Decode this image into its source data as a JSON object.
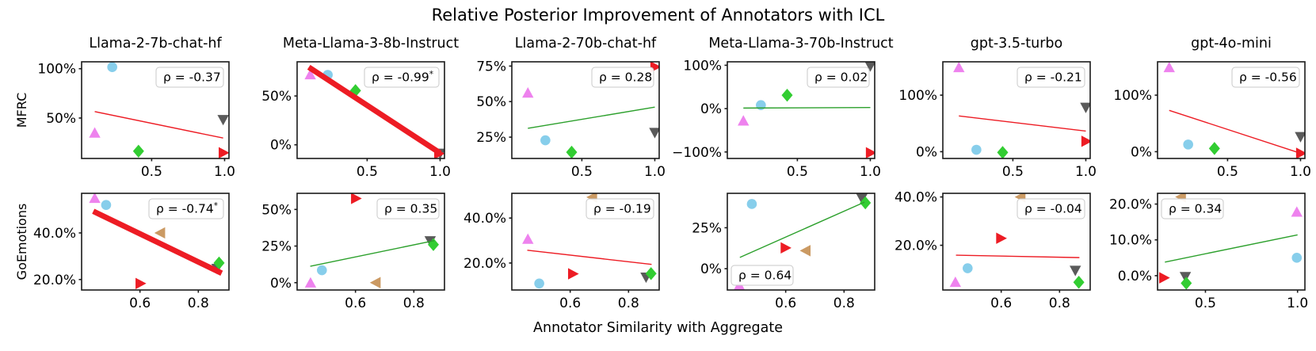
{
  "title": "Relative Posterior Improvement of Annotators with ICL",
  "xlabel": "Annotator Similarity with Aggregate",
  "rows": [
    "MFRC",
    "GoEmotions"
  ],
  "columns": [
    "Llama-2-7b-chat-hf",
    "Meta-Llama-3-8b-Instruct",
    "Llama-2-70b-chat-hf",
    "Meta-Llama-3-70b-Instruct",
    "gpt-3.5-turbo",
    "gpt-4o-mini"
  ],
  "colors": {
    "skyblue": "#87CEEB",
    "violet": "#EE82EE",
    "limegreen": "#32CD32",
    "gray": "#5A5A5A",
    "red": "#ED1C24",
    "peru": "#CB9A63",
    "trend_red": "#ED1C24",
    "trend_green": "#2CA02C",
    "axis": "#1A1A1A",
    "rho_box_border": "#C9C9C9",
    "rho_box_fill": "#FFFFFF"
  },
  "marker_shapes": [
    "circle",
    "triangle-up",
    "triangle-down",
    "triangle-left",
    "triangle-right",
    "diamond"
  ],
  "chart_data": [
    {
      "type": "scatter",
      "row": 0,
      "col": 0,
      "dataset": "MFRC",
      "model": "Llama-2-7b-chat-hf",
      "xlim": [
        0.02,
        1.03
      ],
      "ylim": [
        9,
        107
      ],
      "xticks": [
        {
          "v": 0.5,
          "label": "0.5"
        },
        {
          "v": 1.0,
          "label": "1.0"
        }
      ],
      "yticks": [
        {
          "v": 50,
          "label": "50%"
        },
        {
          "v": 100,
          "label": "100%"
        }
      ],
      "points": [
        {
          "marker": "triangle-up",
          "color": "violet",
          "x": 0.11,
          "y": 34.6
        },
        {
          "marker": "circle",
          "color": "skyblue",
          "x": 0.23,
          "y": 101.6
        },
        {
          "marker": "diamond",
          "color": "limegreen",
          "x": 0.41,
          "y": 16.4
        },
        {
          "marker": "triangle-down",
          "color": "gray",
          "x": 0.99,
          "y": 48.6
        },
        {
          "marker": "triangle-right",
          "color": "red",
          "x": 0.99,
          "y": 14.8
        }
      ],
      "trend": {
        "color": "red",
        "x1": 0.11,
        "y1": 56.5,
        "x2": 0.99,
        "y2": 29.7,
        "thick": false
      },
      "rho": {
        "value": "-0.37",
        "significant": false,
        "position": "top-right"
      }
    },
    {
      "type": "scatter",
      "row": 0,
      "col": 1,
      "dataset": "MFRC",
      "model": "Meta-Llama-3-8b-Instruct",
      "xlim": [
        0.02,
        1.03
      ],
      "ylim": [
        -14,
        85
      ],
      "xticks": [
        {
          "v": 0.5,
          "label": "0.5"
        },
        {
          "v": 1.0,
          "label": "1.0"
        }
      ],
      "yticks": [
        {
          "v": 0,
          "label": "0%"
        },
        {
          "v": 50,
          "label": "50%"
        }
      ],
      "points": [
        {
          "marker": "triangle-up",
          "color": "violet",
          "x": 0.11,
          "y": 71.6
        },
        {
          "marker": "circle",
          "color": "skyblue",
          "x": 0.23,
          "y": 71.6
        },
        {
          "marker": "diamond",
          "color": "limegreen",
          "x": 0.42,
          "y": 55.5
        },
        {
          "marker": "triangle-down",
          "color": "gray",
          "x": 1.0,
          "y": -8.5
        },
        {
          "marker": "triangle-right",
          "color": "red",
          "x": 0.99,
          "y": -9.0
        }
      ],
      "trend": {
        "color": "red",
        "x1": 0.1,
        "y1": 79.5,
        "x2": 1.0,
        "y2": -8.5,
        "thick": true
      },
      "rho": {
        "value": "-0.99",
        "significant": true,
        "position": "top-right"
      }
    },
    {
      "type": "scatter",
      "row": 0,
      "col": 2,
      "dataset": "MFRC",
      "model": "Llama-2-70b-chat-hf",
      "xlim": [
        0.02,
        1.03
      ],
      "ylim": [
        10,
        78
      ],
      "xticks": [
        {
          "v": 0.5,
          "label": "0.5"
        },
        {
          "v": 1.0,
          "label": "1.0"
        }
      ],
      "yticks": [
        {
          "v": 25,
          "label": "25%"
        },
        {
          "v": 50,
          "label": "50%"
        },
        {
          "v": 75,
          "label": "75%"
        }
      ],
      "points": [
        {
          "marker": "triangle-up",
          "color": "violet",
          "x": 0.13,
          "y": 55.9
        },
        {
          "marker": "circle",
          "color": "skyblue",
          "x": 0.25,
          "y": 22.8
        },
        {
          "marker": "diamond",
          "color": "limegreen",
          "x": 0.43,
          "y": 14.4
        },
        {
          "marker": "triangle-right",
          "color": "red",
          "x": 1.0,
          "y": 74.4
        },
        {
          "marker": "triangle-down",
          "color": "gray",
          "x": 1.0,
          "y": 28.4
        }
      ],
      "trend": {
        "color": "green",
        "x1": 0.13,
        "y1": 31.2,
        "x2": 1.0,
        "y2": 46.1,
        "thick": false
      },
      "rho": {
        "value": "0.28",
        "significant": false,
        "position": "top-right"
      }
    },
    {
      "type": "scatter",
      "row": 0,
      "col": 3,
      "dataset": "MFRC",
      "model": "Meta-Llama-3-70b-Instruct",
      "xlim": [
        0.02,
        1.03
      ],
      "ylim": [
        -115,
        108
      ],
      "xticks": [
        {
          "v": 0.5,
          "label": "0.5"
        },
        {
          "v": 1.0,
          "label": "1.0"
        }
      ],
      "yticks": [
        {
          "v": -100,
          "label": "−100%"
        },
        {
          "v": 0,
          "label": "0%"
        },
        {
          "v": 100,
          "label": "100%"
        }
      ],
      "points": [
        {
          "marker": "triangle-up",
          "color": "violet",
          "x": 0.13,
          "y": -28.9
        },
        {
          "marker": "circle",
          "color": "skyblue",
          "x": 0.25,
          "y": 8.1
        },
        {
          "marker": "diamond",
          "color": "limegreen",
          "x": 0.43,
          "y": 30.9
        },
        {
          "marker": "triangle-down",
          "color": "gray",
          "x": 1.0,
          "y": 98.9
        },
        {
          "marker": "triangle-right",
          "color": "red",
          "x": 1.0,
          "y": -101.9
        }
      ],
      "trend": {
        "color": "green",
        "x1": 0.13,
        "y1": 1.3,
        "x2": 1.0,
        "y2": 2.6,
        "thick": false
      },
      "rho": {
        "value": "0.02",
        "significant": false,
        "position": "top-right"
      }
    },
    {
      "type": "scatter",
      "row": 0,
      "col": 4,
      "dataset": "MFRC",
      "model": "gpt-3.5-turbo",
      "xlim": [
        0.02,
        1.03
      ],
      "ylim": [
        -12,
        159
      ],
      "xticks": [
        {
          "v": 0.5,
          "label": "0.5"
        },
        {
          "v": 1.0,
          "label": "1.0"
        }
      ],
      "yticks": [
        {
          "v": 0,
          "label": "0%"
        },
        {
          "v": 100,
          "label": "100%"
        }
      ],
      "points": [
        {
          "marker": "triangle-up",
          "color": "violet",
          "x": 0.13,
          "y": 148.5
        },
        {
          "marker": "circle",
          "color": "skyblue",
          "x": 0.25,
          "y": 3.4
        },
        {
          "marker": "diamond",
          "color": "limegreen",
          "x": 0.43,
          "y": -1.4
        },
        {
          "marker": "triangle-down",
          "color": "gray",
          "x": 1.0,
          "y": 78.8
        },
        {
          "marker": "triangle-right",
          "color": "red",
          "x": 1.0,
          "y": 18.4
        }
      ],
      "trend": {
        "color": "red",
        "x1": 0.13,
        "y1": 63.2,
        "x2": 1.0,
        "y2": 36.4,
        "thick": false
      },
      "rho": {
        "value": "-0.21",
        "significant": false,
        "position": "top-right"
      }
    },
    {
      "type": "scatter",
      "row": 0,
      "col": 5,
      "dataset": "MFRC",
      "model": "gpt-4o-mini",
      "xlim": [
        0.02,
        1.03
      ],
      "ylim": [
        -12,
        159
      ],
      "xticks": [
        {
          "v": 0.5,
          "label": "0.5"
        },
        {
          "v": 1.0,
          "label": "1.0"
        }
      ],
      "yticks": [
        {
          "v": 0,
          "label": "0%"
        },
        {
          "v": 100,
          "label": "100%"
        }
      ],
      "points": [
        {
          "marker": "triangle-up",
          "color": "violet",
          "x": 0.1,
          "y": 148.5
        },
        {
          "marker": "circle",
          "color": "skyblue",
          "x": 0.23,
          "y": 12.7
        },
        {
          "marker": "diamond",
          "color": "limegreen",
          "x": 0.41,
          "y": 5.7
        },
        {
          "marker": "triangle-down",
          "color": "gray",
          "x": 1.0,
          "y": 26.9
        },
        {
          "marker": "triangle-right",
          "color": "red",
          "x": 1.0,
          "y": -2.8
        }
      ],
      "trend": {
        "color": "red",
        "x1": 0.1,
        "y1": 73.1,
        "x2": 1.0,
        "y2": -2.8,
        "thick": false
      },
      "rho": {
        "value": "-0.56",
        "significant": false,
        "position": "top-right"
      }
    },
    {
      "type": "scatter",
      "row": 1,
      "col": 0,
      "dataset": "GoEmotions",
      "model": "Llama-2-7b-chat-hf",
      "xlim": [
        0.4,
        0.905
      ],
      "ylim": [
        15.5,
        57
      ],
      "xticks": [
        {
          "v": 0.6,
          "label": "0.6"
        },
        {
          "v": 0.8,
          "label": "0.8"
        }
      ],
      "yticks": [
        {
          "v": 20,
          "label": "20.0%"
        },
        {
          "v": 40,
          "label": "40.0%"
        }
      ],
      "points": [
        {
          "marker": "triangle-up",
          "color": "violet",
          "x": 0.445,
          "y": 54.8
        },
        {
          "marker": "circle",
          "color": "skyblue",
          "x": 0.484,
          "y": 52.0
        },
        {
          "marker": "triangle-left",
          "color": "peru",
          "x": 0.671,
          "y": 40.0
        },
        {
          "marker": "triangle-right",
          "color": "red",
          "x": 0.6,
          "y": 18.3
        },
        {
          "marker": "triangle-down",
          "color": "gray",
          "x": 0.864,
          "y": 24.8
        },
        {
          "marker": "diamond",
          "color": "limegreen",
          "x": 0.871,
          "y": 27.1
        }
      ],
      "trend": {
        "color": "red",
        "x1": 0.44,
        "y1": 49.3,
        "x2": 0.88,
        "y2": 22.7,
        "thick": true
      },
      "rho": {
        "value": "-0.74",
        "significant": true,
        "position": "top-right"
      }
    },
    {
      "type": "scatter",
      "row": 1,
      "col": 1,
      "dataset": "GoEmotions",
      "model": "Meta-Llama-3-8b-Instruct",
      "xlim": [
        0.4,
        0.905
      ],
      "ylim": [
        -5,
        61
      ],
      "xticks": [
        {
          "v": 0.6,
          "label": "0.6"
        },
        {
          "v": 0.8,
          "label": "0.8"
        }
      ],
      "yticks": [
        {
          "v": 0,
          "label": "0%"
        },
        {
          "v": 25,
          "label": "25%"
        },
        {
          "v": 50,
          "label": "50%"
        }
      ],
      "points": [
        {
          "marker": "triangle-right",
          "color": "red",
          "x": 0.6,
          "y": 57.5
        },
        {
          "marker": "triangle-up",
          "color": "violet",
          "x": 0.446,
          "y": -0.3
        },
        {
          "marker": "circle",
          "color": "skyblue",
          "x": 0.485,
          "y": 8.5
        },
        {
          "marker": "triangle-left",
          "color": "peru",
          "x": 0.671,
          "y": 0.0
        },
        {
          "marker": "triangle-down",
          "color": "gray",
          "x": 0.856,
          "y": 28.7
        },
        {
          "marker": "diamond",
          "color": "limegreen",
          "x": 0.867,
          "y": 26.0
        }
      ],
      "trend": {
        "color": "green",
        "x1": 0.445,
        "y1": 11.2,
        "x2": 0.87,
        "y2": 28.7,
        "thick": false
      },
      "rho": {
        "value": "0.35",
        "significant": false,
        "position": "top-right"
      }
    },
    {
      "type": "scatter",
      "row": 1,
      "col": 2,
      "dataset": "GoEmotions",
      "model": "Llama-2-70b-chat-hf",
      "xlim": [
        0.4,
        0.905
      ],
      "ylim": [
        8,
        51
      ],
      "xticks": [
        {
          "v": 0.6,
          "label": "0.6"
        },
        {
          "v": 0.8,
          "label": "0.8"
        }
      ],
      "yticks": [
        {
          "v": 20,
          "label": "20.0%"
        },
        {
          "v": 40,
          "label": "40.0%"
        }
      ],
      "points": [
        {
          "marker": "triangle-left",
          "color": "peru",
          "x": 0.677,
          "y": 49.3
        },
        {
          "marker": "triangle-up",
          "color": "violet",
          "x": 0.455,
          "y": 30.5
        },
        {
          "marker": "circle",
          "color": "skyblue",
          "x": 0.494,
          "y": 10.9
        },
        {
          "marker": "triangle-right",
          "color": "red",
          "x": 0.608,
          "y": 15.2
        },
        {
          "marker": "triangle-down",
          "color": "gray",
          "x": 0.86,
          "y": 13.8
        },
        {
          "marker": "diamond",
          "color": "limegreen",
          "x": 0.877,
          "y": 15.3
        }
      ],
      "trend": {
        "color": "red",
        "x1": 0.453,
        "y1": 25.7,
        "x2": 0.879,
        "y2": 19.4,
        "thick": false
      },
      "rho": {
        "value": "-0.19",
        "significant": false,
        "position": "top-right"
      }
    },
    {
      "type": "scatter",
      "row": 1,
      "col": 3,
      "dataset": "GoEmotions",
      "model": "Meta-Llama-3-70b-Instruct",
      "xlim": [
        0.4,
        0.905
      ],
      "ylim": [
        -13,
        46
      ],
      "xticks": [
        {
          "v": 0.6,
          "label": "0.6"
        },
        {
          "v": 0.8,
          "label": "0.8"
        }
      ],
      "yticks": [
        {
          "v": 0,
          "label": "0%"
        },
        {
          "v": 25,
          "label": "25%"
        }
      ],
      "points": [
        {
          "marker": "circle",
          "color": "skyblue",
          "x": 0.484,
          "y": 39.5
        },
        {
          "marker": "triangle-down",
          "color": "gray",
          "x": 0.861,
          "y": 43.1
        },
        {
          "marker": "diamond",
          "color": "limegreen",
          "x": 0.873,
          "y": 40.2
        },
        {
          "marker": "triangle-right",
          "color": "red",
          "x": 0.598,
          "y": 12.7
        },
        {
          "marker": "triangle-left",
          "color": "peru",
          "x": 0.67,
          "y": 11.0
        },
        {
          "marker": "triangle-up",
          "color": "violet",
          "x": 0.441,
          "y": -10.4
        }
      ],
      "trend": {
        "color": "green",
        "x1": 0.443,
        "y1": 6.9,
        "x2": 0.87,
        "y2": 40.6,
        "thick": false
      },
      "rho": {
        "value": "0.64",
        "significant": false,
        "position": "bottom-left"
      }
    },
    {
      "type": "scatter",
      "row": 1,
      "col": 4,
      "dataset": "GoEmotions",
      "model": "gpt-3.5-turbo",
      "xlim": [
        0.4,
        0.905
      ],
      "ylim": [
        1.5,
        41.5
      ],
      "xticks": [
        {
          "v": 0.6,
          "label": "0.6"
        },
        {
          "v": 0.8,
          "label": "0.8"
        }
      ],
      "yticks": [
        {
          "v": 20,
          "label": "20.0%"
        },
        {
          "v": 40,
          "label": "40.0%"
        }
      ],
      "points": [
        {
          "marker": "triangle-left",
          "color": "peru",
          "x": 0.668,
          "y": 40.0
        },
        {
          "marker": "triangle-right",
          "color": "red",
          "x": 0.598,
          "y": 22.9
        },
        {
          "marker": "circle",
          "color": "skyblue",
          "x": 0.485,
          "y": 10.5
        },
        {
          "marker": "triangle-up",
          "color": "violet",
          "x": 0.443,
          "y": 4.6
        },
        {
          "marker": "triangle-down",
          "color": "gray",
          "x": 0.854,
          "y": 9.7
        },
        {
          "marker": "diamond",
          "color": "limegreen",
          "x": 0.866,
          "y": 4.7
        }
      ],
      "trend": {
        "color": "red",
        "x1": 0.445,
        "y1": 15.9,
        "x2": 0.868,
        "y2": 14.9,
        "thick": false
      },
      "rho": {
        "value": "-0.04",
        "significant": false,
        "position": "top-right"
      }
    },
    {
      "type": "scatter",
      "row": 1,
      "col": 5,
      "dataset": "GoEmotions",
      "model": "gpt-4o-mini",
      "xlim": [
        0.24,
        1.04
      ],
      "ylim": [
        -4,
        23
      ],
      "xticks": [
        {
          "v": 0.5,
          "label": "0.5"
        },
        {
          "v": 1.0,
          "label": "1.0"
        }
      ],
      "yticks": [
        {
          "v": 0,
          "label": "0.0%"
        },
        {
          "v": 10,
          "label": "10.0%"
        },
        {
          "v": 20,
          "label": "20.0%"
        }
      ],
      "points": [
        {
          "marker": "triangle-left",
          "color": "peru",
          "x": 0.37,
          "y": 22.0
        },
        {
          "marker": "triangle-up",
          "color": "violet",
          "x": 0.996,
          "y": 17.7
        },
        {
          "marker": "circle",
          "color": "skyblue",
          "x": 0.996,
          "y": 5.0
        },
        {
          "marker": "triangle-right",
          "color": "red",
          "x": 0.273,
          "y": -0.6
        },
        {
          "marker": "triangle-down",
          "color": "gray",
          "x": 0.391,
          "y": -0.2
        },
        {
          "marker": "diamond",
          "color": "limegreen",
          "x": 0.396,
          "y": -2.1
        }
      ],
      "trend": {
        "color": "green",
        "x1": 0.28,
        "y1": 3.8,
        "x2": 1.0,
        "y2": 11.4,
        "thick": false
      },
      "rho": {
        "value": "0.34",
        "significant": false,
        "position": "top-left"
      }
    }
  ]
}
